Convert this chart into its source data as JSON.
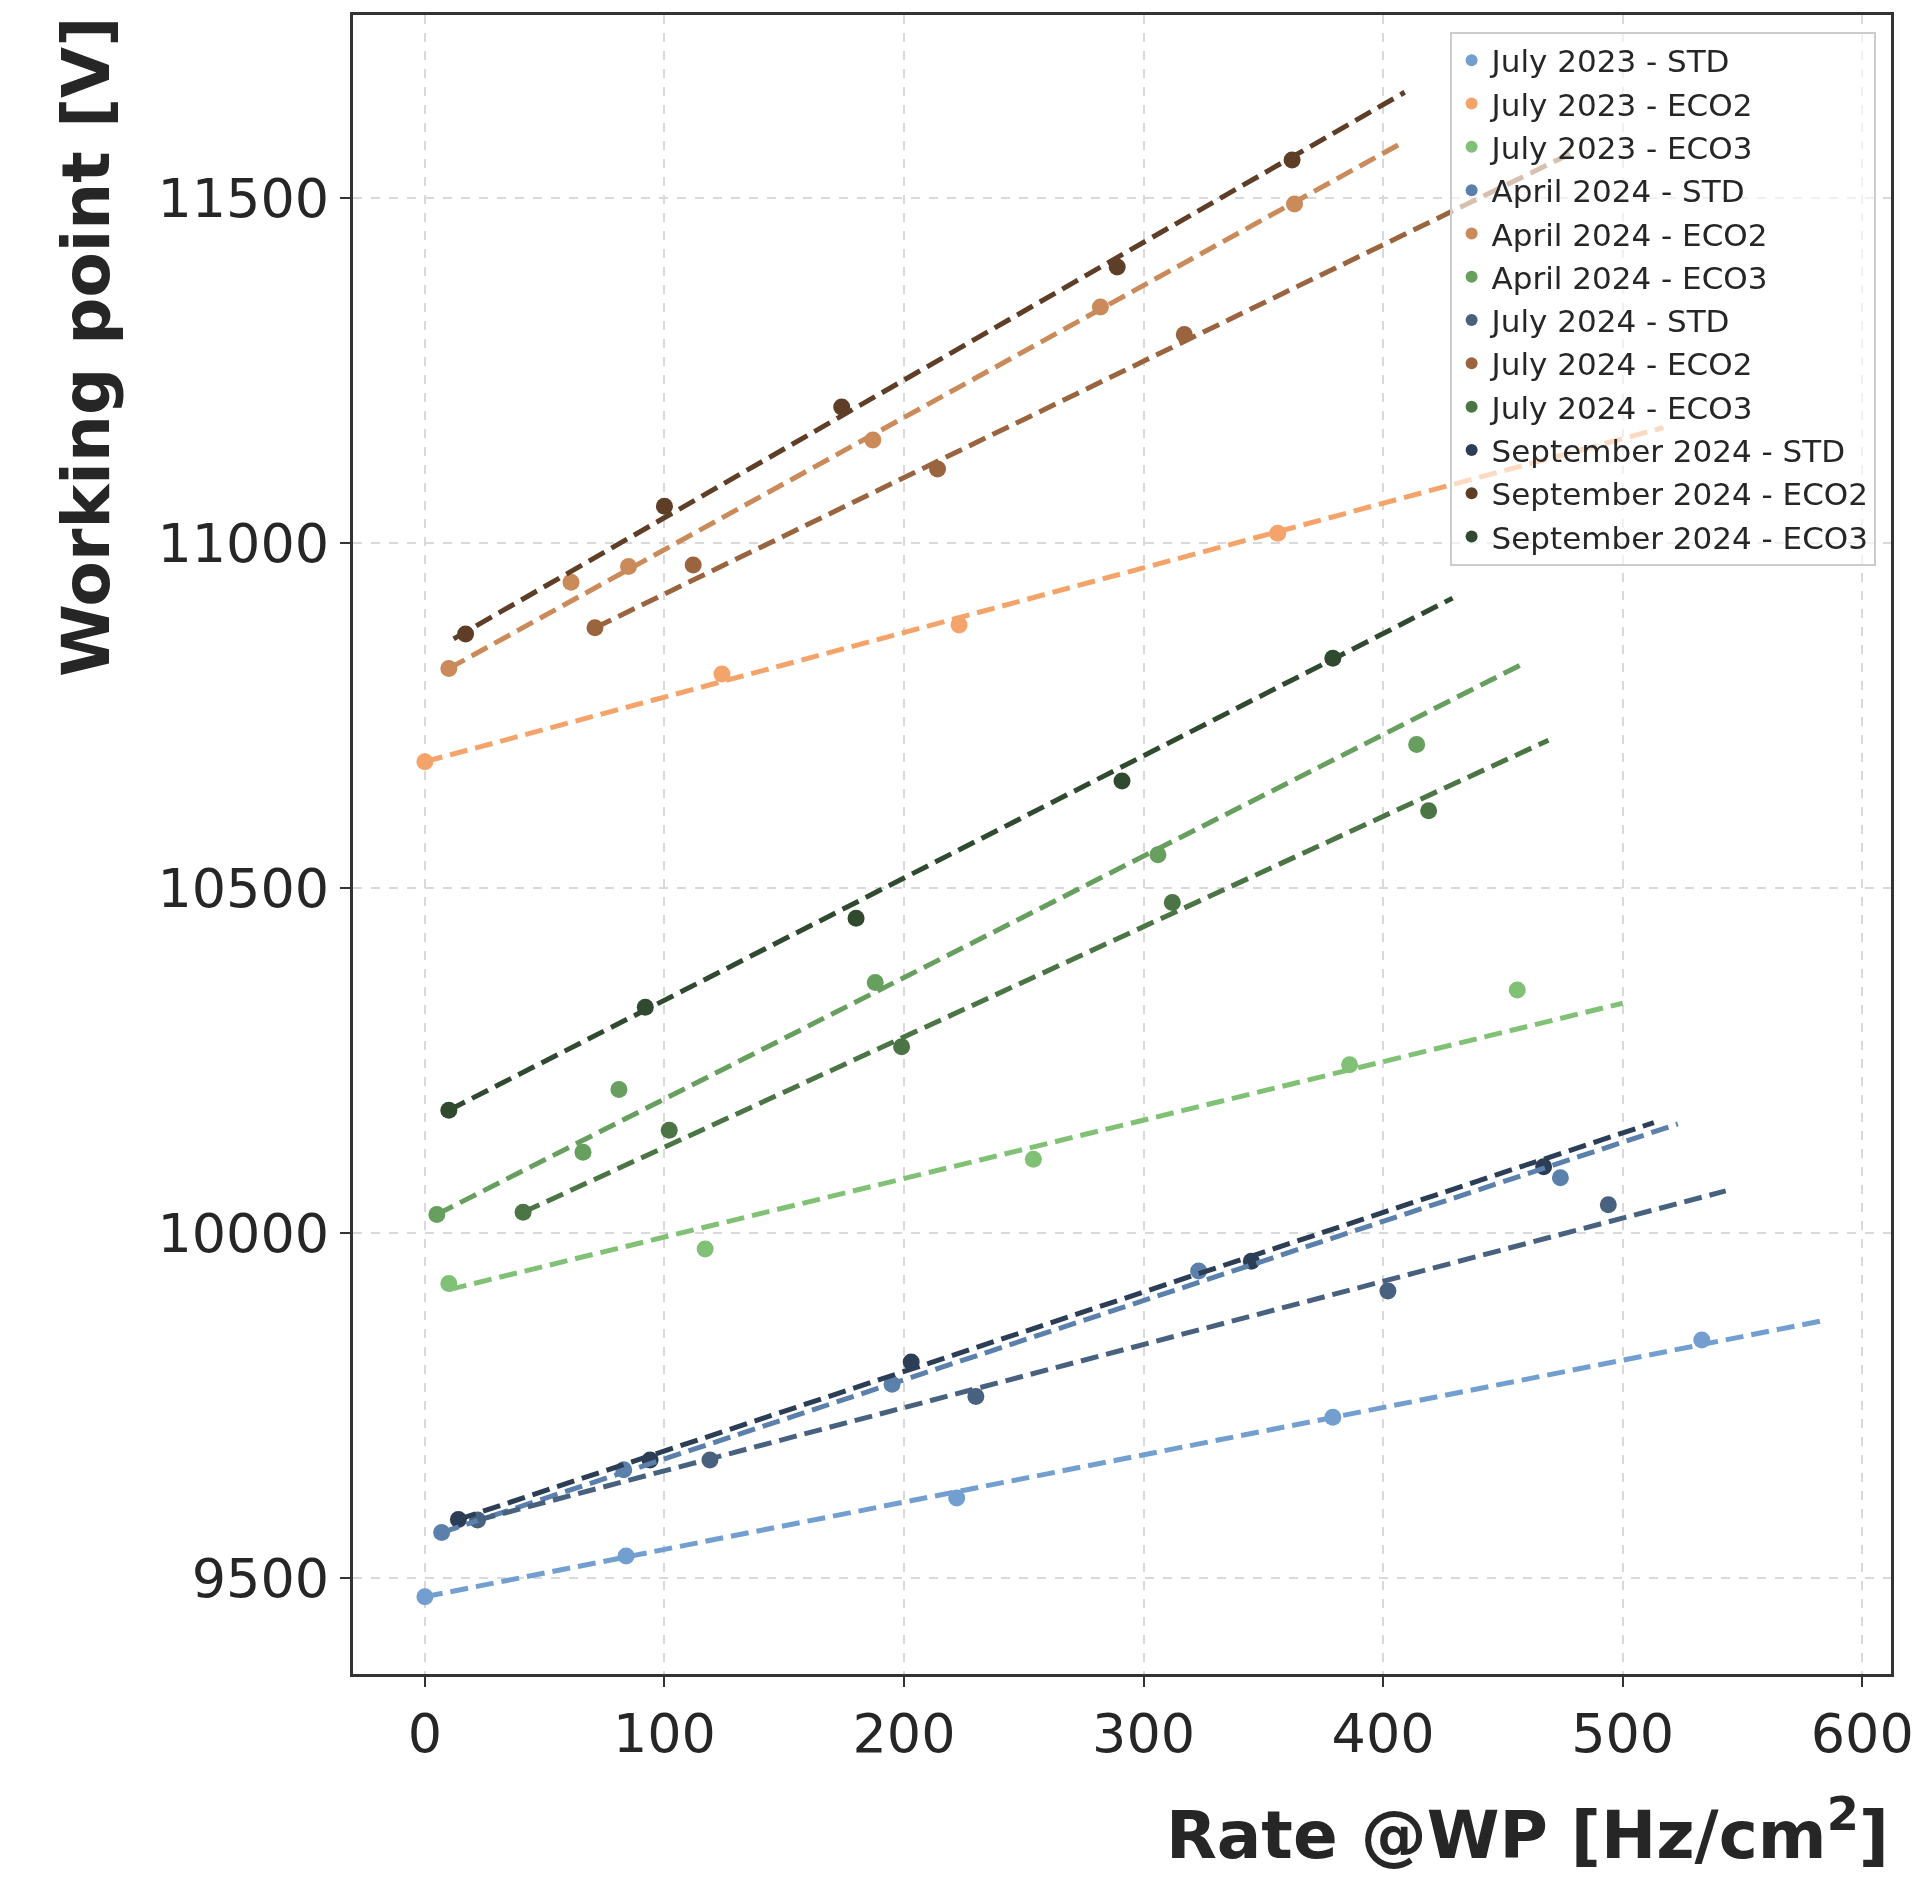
{
  "chart_data": {
    "type": "scatter",
    "xlabel": "Rate @WP [Hz/cm$^{2}$]",
    "ylabel": "Working point [V]",
    "xlim": [
      -30,
      612
    ],
    "ylim": [
      9361,
      11765
    ],
    "xticks": [
      0,
      100,
      200,
      300,
      400,
      500,
      600
    ],
    "yticks": [
      9500,
      10000,
      10500,
      11000,
      11500
    ],
    "grid": true,
    "legend": "top right",
    "marker": "circle",
    "line_style": "dashed",
    "series": [
      {
        "name": "July 2023 - STD",
        "color": "#729fcf",
        "x": [
          0,
          84,
          222,
          379,
          533
        ],
        "values": [
          9473,
          9532,
          9616,
          9733,
          9845
        ]
      },
      {
        "name": "July 2023 - ECO2",
        "color": "#f4a46a",
        "x": [
          0,
          124,
          223,
          356
        ],
        "values": [
          10683,
          10810,
          10881,
          11014
        ]
      },
      {
        "name": "July 2023 - ECO3",
        "color": "#81c176",
        "x": [
          10,
          117,
          254,
          386,
          456
        ],
        "values": [
          9927,
          9977,
          10107,
          10244,
          10352
        ]
      },
      {
        "name": "April 2024 - STD",
        "color": "#5b80ab",
        "x": [
          7,
          83,
          195,
          323,
          474
        ],
        "values": [
          9566,
          9657,
          9781,
          9945,
          10080
        ]
      },
      {
        "name": "April 2024 - ECO2",
        "color": "#ca8a5a",
        "x": [
          10,
          61,
          85,
          187,
          282,
          363
        ],
        "values": [
          10818,
          10943,
          10966,
          11149,
          11342,
          11491
        ]
      },
      {
        "name": "April 2024 - ECO3",
        "color": "#679f5f",
        "x": [
          5,
          66,
          81,
          188,
          306,
          414
        ],
        "values": [
          10027,
          10117,
          10208,
          10363,
          10548,
          10708
        ]
      },
      {
        "name": "July 2024 - STD",
        "color": "#48617f",
        "x": [
          22,
          119,
          230,
          402,
          494
        ],
        "values": [
          9584,
          9671,
          9763,
          9916,
          10041
        ]
      },
      {
        "name": "July 2024 - ECO2",
        "color": "#9a643e",
        "x": [
          71,
          112,
          214,
          317
        ],
        "values": [
          10877,
          10968,
          11107,
          11302
        ]
      },
      {
        "name": "July 2024 - ECO3",
        "color": "#4c7546",
        "x": [
          41,
          102,
          199,
          312,
          419
        ],
        "values": [
          10030,
          10149,
          10270,
          10479,
          10612
        ]
      },
      {
        "name": "September 2024 - STD",
        "color": "#2c3e55",
        "x": [
          14,
          94,
          203,
          345,
          467
        ],
        "values": [
          9585,
          9671,
          9813,
          9959,
          10096
        ]
      },
      {
        "name": "September 2024 - ECO2",
        "color": "#5f3e28",
        "x": [
          17,
          100,
          174,
          289,
          362
        ],
        "values": [
          10868,
          11053,
          11197,
          11400,
          11555
        ]
      },
      {
        "name": "September 2024 - ECO3",
        "color": "#304a30",
        "x": [
          10,
          92,
          180,
          291,
          379
        ],
        "values": [
          10178,
          10327,
          10456,
          10655,
          10833
        ]
      },
      {
        "type": "line",
        "marker": "none",
        "color": "#729fcf",
        "x": [
          0,
          585
        ],
        "values": [
          9473,
          9874
        ]
      },
      {
        "type": "line",
        "marker": "none",
        "color": "#f4a46a",
        "x": [
          0,
          517
        ],
        "values": [
          10683,
          11167
        ]
      },
      {
        "type": "line",
        "marker": "none",
        "color": "#81c176",
        "x": [
          10,
          500
        ],
        "values": [
          9918,
          10333
        ]
      },
      {
        "type": "line",
        "marker": "none",
        "color": "#5b80ab",
        "x": [
          7,
          523
        ],
        "values": [
          9566,
          10158
        ]
      },
      {
        "type": "line",
        "marker": "none",
        "color": "#ca8a5a",
        "x": [
          10,
          407
        ],
        "values": [
          10818,
          11578
        ]
      },
      {
        "type": "line",
        "marker": "none",
        "color": "#679f5f",
        "x": [
          5,
          459
        ],
        "values": [
          10027,
          10826
        ]
      },
      {
        "type": "line",
        "marker": "none",
        "color": "#48617f",
        "x": [
          22,
          543
        ],
        "values": [
          9584,
          10061
        ]
      },
      {
        "type": "line",
        "marker": "none",
        "color": "#9a643e",
        "x": [
          71,
          480
        ],
        "values": [
          10877,
          11567
        ]
      },
      {
        "type": "line",
        "marker": "none",
        "color": "#4c7546",
        "x": [
          41,
          469
        ],
        "values": [
          10030,
          10714
        ]
      },
      {
        "type": "line",
        "marker": "none",
        "color": "#2c3e55",
        "x": [
          14,
          513
        ],
        "values": [
          9585,
          10160
        ]
      },
      {
        "type": "line",
        "marker": "none",
        "color": "#5f3e28",
        "x": [
          12,
          409
        ],
        "values": [
          10861,
          11653
        ]
      },
      {
        "type": "line",
        "marker": "none",
        "color": "#304a30",
        "x": [
          10,
          429
        ],
        "values": [
          10178,
          10920
        ]
      }
    ]
  }
}
